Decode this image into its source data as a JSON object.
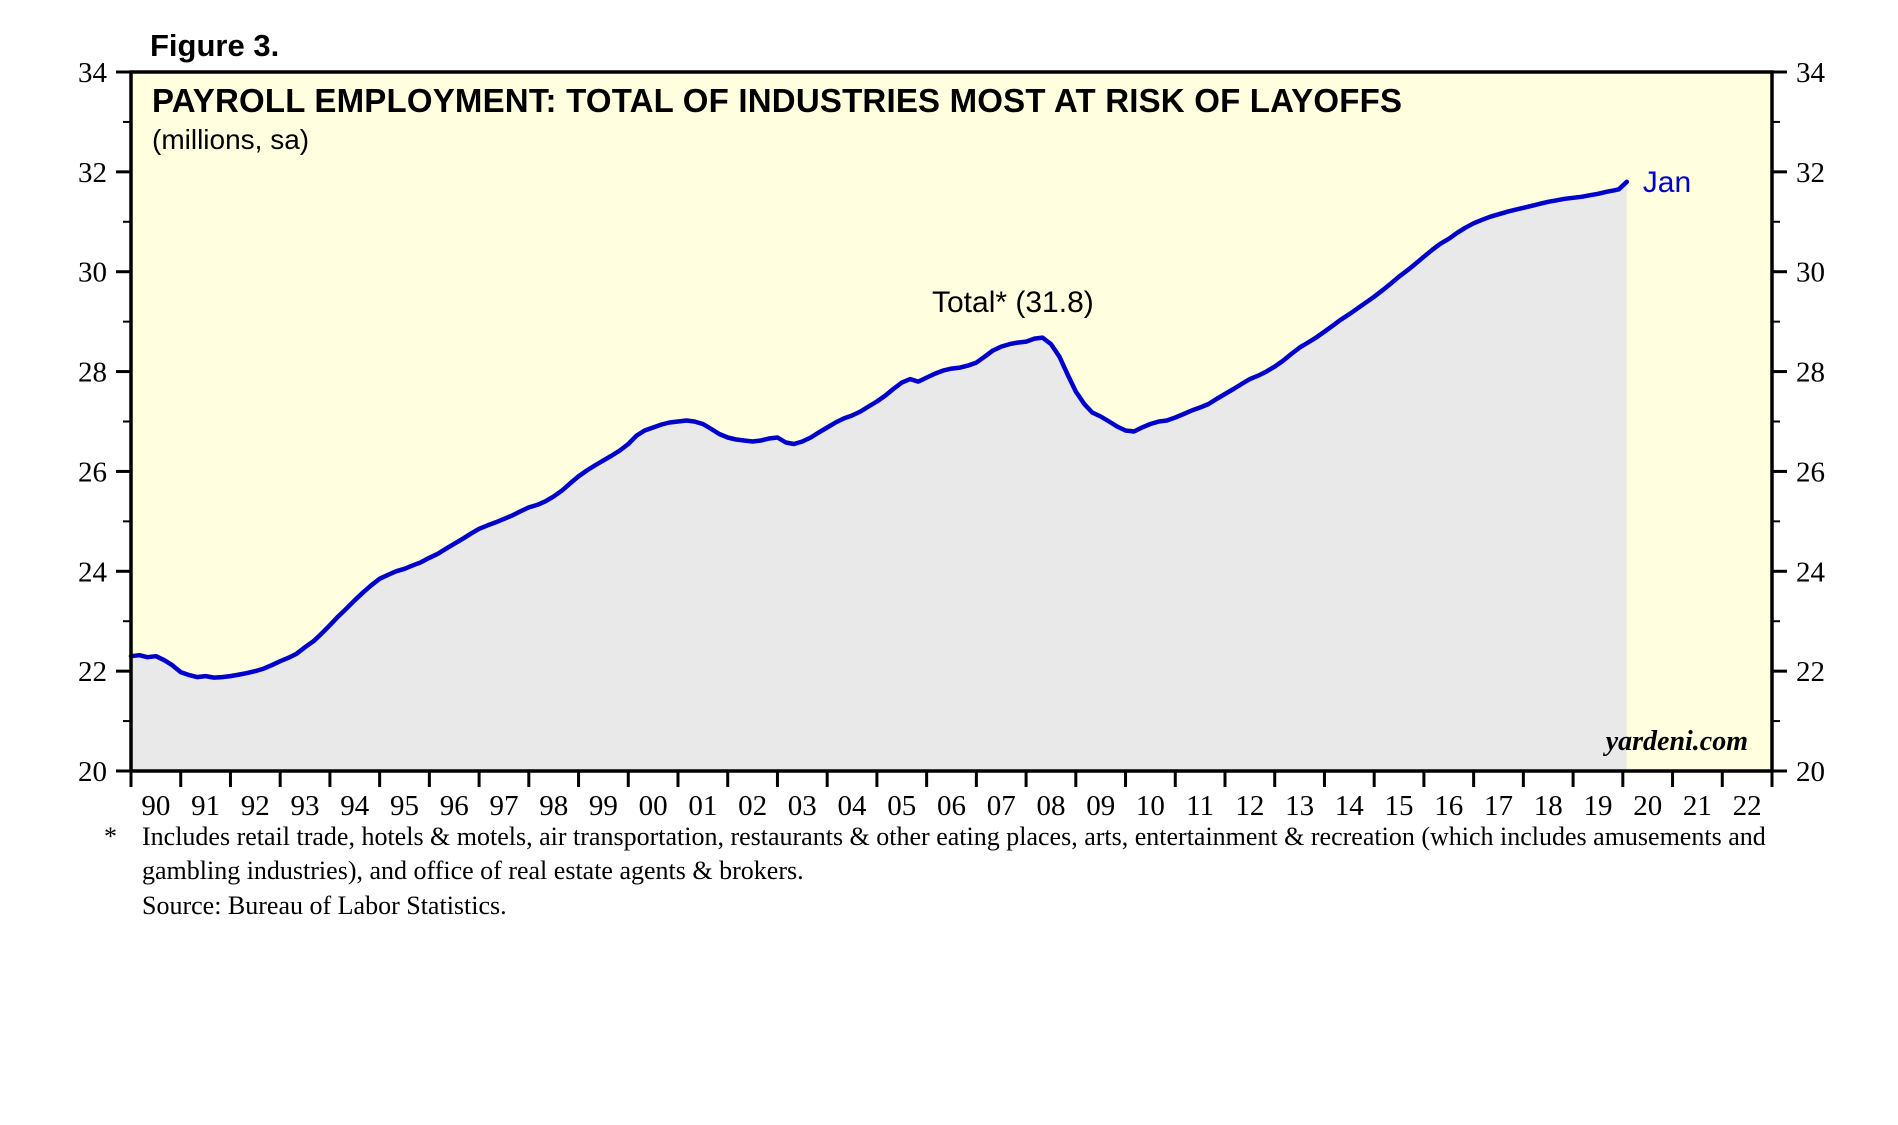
{
  "figure": {
    "label": "Figure 3."
  },
  "chart": {
    "title": "PAYROLL EMPLOYMENT: TOTAL OF INDUSTRIES MOST AT RISK OF LAYOFFS",
    "subtitle": "(millions, sa)",
    "annotation": "Total* (31.8)",
    "latest_label": "Jan",
    "watermark": "yardeni.com"
  },
  "footnote": {
    "marker": "*",
    "text": "Includes retail trade, hotels & motels, air transportation, restaurants & other eating places, arts, entertainment & recreation (which includes amusements and gambling industries), and office of real estate agents & brokers.",
    "source": "Source: Bureau of Labor Statistics."
  },
  "chart_data": {
    "type": "area",
    "title": "PAYROLL EMPLOYMENT: TOTAL OF INDUSTRIES MOST AT RISK OF LAYOFFS",
    "subtitle": "(millions, sa)",
    "ylabel": "millions, seasonally adjusted",
    "ylim": [
      20,
      34
    ],
    "x_range": [
      1990,
      2023
    ],
    "yticks": [
      20,
      22,
      24,
      26,
      28,
      30,
      32,
      34
    ],
    "x_tick_labels": [
      "90",
      "91",
      "92",
      "93",
      "94",
      "95",
      "96",
      "97",
      "98",
      "99",
      "00",
      "01",
      "02",
      "03",
      "04",
      "05",
      "06",
      "07",
      "08",
      "09",
      "10",
      "11",
      "12",
      "13",
      "14",
      "15",
      "16",
      "17",
      "18",
      "19",
      "20",
      "21",
      "22"
    ],
    "legend_position": "none",
    "grid": false,
    "annotation": "Total* (31.8)",
    "latest_point": {
      "label": "Jan",
      "x": 2020.08,
      "value": 31.8
    },
    "colors": {
      "line": "#0000cc",
      "area_fill": "#e9e9e9",
      "background": "#ffffe0",
      "frame": "#000000",
      "label_blue": "#0000cc"
    },
    "series": [
      {
        "name": "Total payroll employment, industries most at risk of layoffs",
        "points": [
          [
            1990.0,
            22.3
          ],
          [
            1990.17,
            22.32
          ],
          [
            1990.33,
            22.28
          ],
          [
            1990.5,
            22.3
          ],
          [
            1990.67,
            22.22
          ],
          [
            1990.83,
            22.12
          ],
          [
            1991.0,
            21.98
          ],
          [
            1991.17,
            21.92
          ],
          [
            1991.33,
            21.88
          ],
          [
            1991.5,
            21.9
          ],
          [
            1991.67,
            21.87
          ],
          [
            1991.83,
            21.88
          ],
          [
            1992.0,
            21.9
          ],
          [
            1992.17,
            21.93
          ],
          [
            1992.33,
            21.96
          ],
          [
            1992.5,
            22.0
          ],
          [
            1992.67,
            22.05
          ],
          [
            1992.83,
            22.12
          ],
          [
            1993.0,
            22.2
          ],
          [
            1993.17,
            22.27
          ],
          [
            1993.33,
            22.35
          ],
          [
            1993.5,
            22.48
          ],
          [
            1993.67,
            22.6
          ],
          [
            1993.83,
            22.75
          ],
          [
            1994.0,
            22.92
          ],
          [
            1994.17,
            23.1
          ],
          [
            1994.33,
            23.25
          ],
          [
            1994.5,
            23.42
          ],
          [
            1994.67,
            23.58
          ],
          [
            1994.83,
            23.72
          ],
          [
            1995.0,
            23.85
          ],
          [
            1995.17,
            23.93
          ],
          [
            1995.33,
            24.0
          ],
          [
            1995.5,
            24.05
          ],
          [
            1995.67,
            24.12
          ],
          [
            1995.83,
            24.18
          ],
          [
            1996.0,
            24.27
          ],
          [
            1996.17,
            24.35
          ],
          [
            1996.33,
            24.45
          ],
          [
            1996.5,
            24.55
          ],
          [
            1996.67,
            24.65
          ],
          [
            1996.83,
            24.75
          ],
          [
            1997.0,
            24.85
          ],
          [
            1997.17,
            24.92
          ],
          [
            1997.33,
            24.98
          ],
          [
            1997.5,
            25.05
          ],
          [
            1997.67,
            25.12
          ],
          [
            1997.83,
            25.2
          ],
          [
            1998.0,
            25.28
          ],
          [
            1998.17,
            25.33
          ],
          [
            1998.33,
            25.4
          ],
          [
            1998.5,
            25.5
          ],
          [
            1998.67,
            25.62
          ],
          [
            1998.83,
            25.76
          ],
          [
            1999.0,
            25.9
          ],
          [
            1999.17,
            26.02
          ],
          [
            1999.33,
            26.12
          ],
          [
            1999.5,
            26.22
          ],
          [
            1999.67,
            26.32
          ],
          [
            1999.83,
            26.42
          ],
          [
            2000.0,
            26.55
          ],
          [
            2000.17,
            26.72
          ],
          [
            2000.33,
            26.82
          ],
          [
            2000.5,
            26.88
          ],
          [
            2000.67,
            26.94
          ],
          [
            2000.83,
            26.98
          ],
          [
            2001.0,
            27.0
          ],
          [
            2001.17,
            27.02
          ],
          [
            2001.33,
            27.0
          ],
          [
            2001.5,
            26.95
          ],
          [
            2001.67,
            26.85
          ],
          [
            2001.83,
            26.75
          ],
          [
            2002.0,
            26.68
          ],
          [
            2002.17,
            26.64
          ],
          [
            2002.33,
            26.62
          ],
          [
            2002.5,
            26.6
          ],
          [
            2002.67,
            26.62
          ],
          [
            2002.83,
            26.66
          ],
          [
            2003.0,
            26.68
          ],
          [
            2003.17,
            26.58
          ],
          [
            2003.33,
            26.55
          ],
          [
            2003.5,
            26.6
          ],
          [
            2003.67,
            26.68
          ],
          [
            2003.83,
            26.78
          ],
          [
            2004.0,
            26.88
          ],
          [
            2004.17,
            26.98
          ],
          [
            2004.33,
            27.06
          ],
          [
            2004.5,
            27.12
          ],
          [
            2004.67,
            27.2
          ],
          [
            2004.83,
            27.3
          ],
          [
            2005.0,
            27.4
          ],
          [
            2005.17,
            27.52
          ],
          [
            2005.33,
            27.65
          ],
          [
            2005.5,
            27.78
          ],
          [
            2005.67,
            27.85
          ],
          [
            2005.83,
            27.8
          ],
          [
            2006.0,
            27.88
          ],
          [
            2006.17,
            27.96
          ],
          [
            2006.33,
            28.02
          ],
          [
            2006.5,
            28.06
          ],
          [
            2006.67,
            28.08
          ],
          [
            2006.83,
            28.12
          ],
          [
            2007.0,
            28.18
          ],
          [
            2007.17,
            28.3
          ],
          [
            2007.33,
            28.42
          ],
          [
            2007.5,
            28.5
          ],
          [
            2007.67,
            28.55
          ],
          [
            2007.83,
            28.58
          ],
          [
            2008.0,
            28.6
          ],
          [
            2008.17,
            28.66
          ],
          [
            2008.33,
            28.68
          ],
          [
            2008.5,
            28.55
          ],
          [
            2008.67,
            28.3
          ],
          [
            2008.83,
            27.95
          ],
          [
            2009.0,
            27.6
          ],
          [
            2009.17,
            27.35
          ],
          [
            2009.33,
            27.18
          ],
          [
            2009.5,
            27.1
          ],
          [
            2009.67,
            27.0
          ],
          [
            2009.83,
            26.9
          ],
          [
            2010.0,
            26.82
          ],
          [
            2010.17,
            26.8
          ],
          [
            2010.33,
            26.88
          ],
          [
            2010.5,
            26.95
          ],
          [
            2010.67,
            27.0
          ],
          [
            2010.83,
            27.02
          ],
          [
            2011.0,
            27.08
          ],
          [
            2011.17,
            27.15
          ],
          [
            2011.33,
            27.22
          ],
          [
            2011.5,
            27.28
          ],
          [
            2011.67,
            27.35
          ],
          [
            2011.83,
            27.45
          ],
          [
            2012.0,
            27.55
          ],
          [
            2012.17,
            27.65
          ],
          [
            2012.33,
            27.75
          ],
          [
            2012.5,
            27.85
          ],
          [
            2012.67,
            27.92
          ],
          [
            2012.83,
            28.0
          ],
          [
            2013.0,
            28.1
          ],
          [
            2013.17,
            28.22
          ],
          [
            2013.33,
            28.35
          ],
          [
            2013.5,
            28.48
          ],
          [
            2013.67,
            28.58
          ],
          [
            2013.83,
            28.68
          ],
          [
            2014.0,
            28.8
          ],
          [
            2014.17,
            28.92
          ],
          [
            2014.33,
            29.04
          ],
          [
            2014.5,
            29.15
          ],
          [
            2014.67,
            29.27
          ],
          [
            2014.83,
            29.38
          ],
          [
            2015.0,
            29.5
          ],
          [
            2015.17,
            29.63
          ],
          [
            2015.33,
            29.76
          ],
          [
            2015.5,
            29.9
          ],
          [
            2015.67,
            30.03
          ],
          [
            2015.83,
            30.16
          ],
          [
            2016.0,
            30.3
          ],
          [
            2016.17,
            30.44
          ],
          [
            2016.33,
            30.56
          ],
          [
            2016.5,
            30.66
          ],
          [
            2016.67,
            30.78
          ],
          [
            2016.83,
            30.88
          ],
          [
            2017.0,
            30.97
          ],
          [
            2017.17,
            31.04
          ],
          [
            2017.33,
            31.1
          ],
          [
            2017.5,
            31.15
          ],
          [
            2017.67,
            31.2
          ],
          [
            2017.83,
            31.24
          ],
          [
            2018.0,
            31.28
          ],
          [
            2018.17,
            31.32
          ],
          [
            2018.33,
            31.36
          ],
          [
            2018.5,
            31.4
          ],
          [
            2018.67,
            31.43
          ],
          [
            2018.83,
            31.46
          ],
          [
            2019.0,
            31.48
          ],
          [
            2019.17,
            31.5
          ],
          [
            2019.33,
            31.53
          ],
          [
            2019.5,
            31.56
          ],
          [
            2019.67,
            31.6
          ],
          [
            2019.83,
            31.63
          ],
          [
            2019.92,
            31.65
          ],
          [
            2020.08,
            31.8
          ]
        ]
      }
    ]
  }
}
